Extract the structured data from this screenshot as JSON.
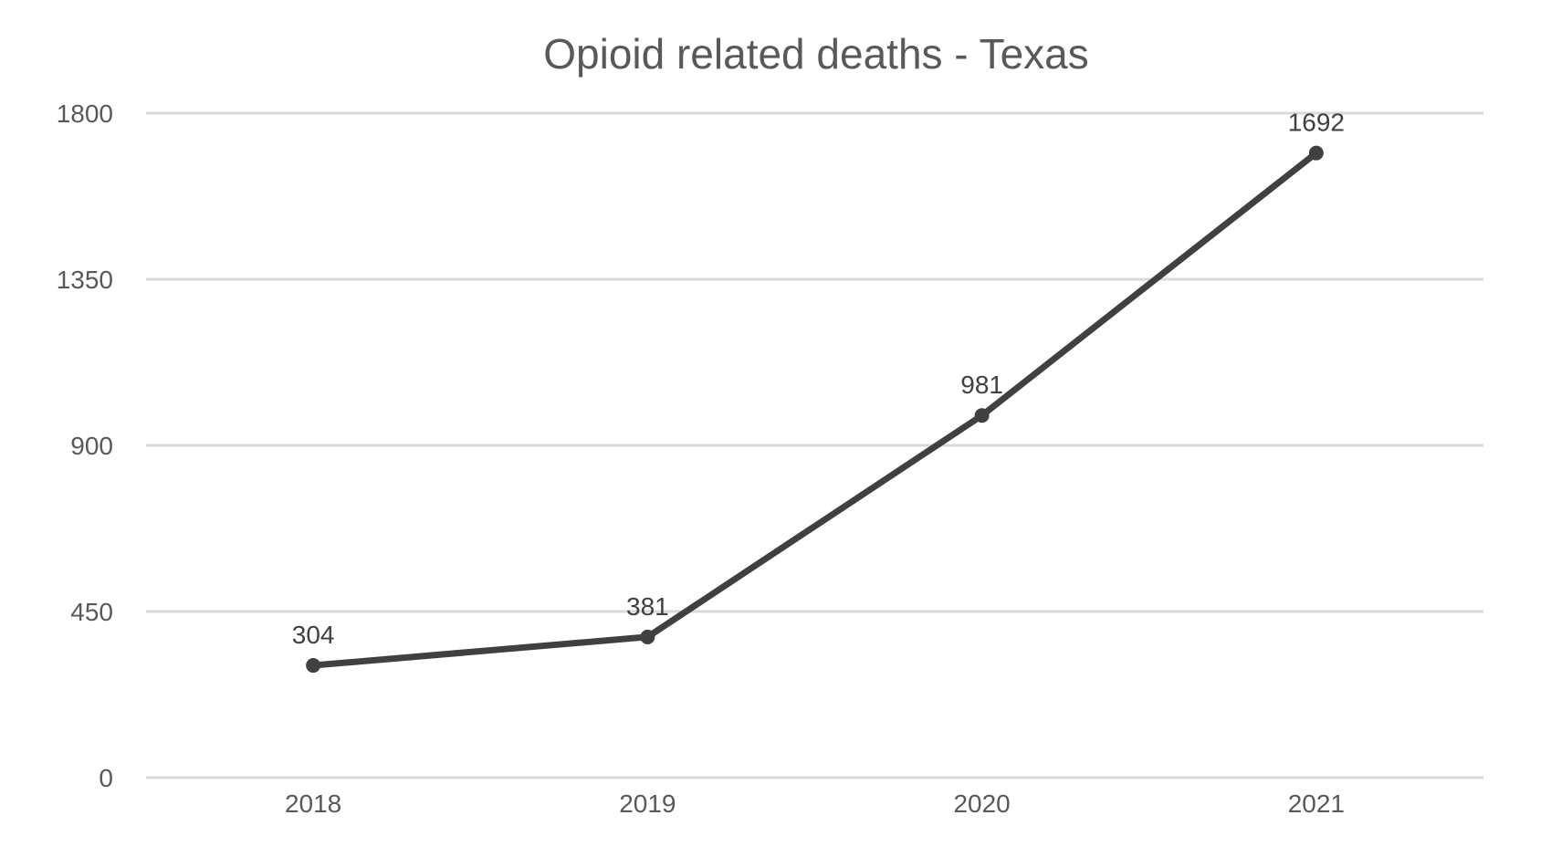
{
  "chart_data": {
    "type": "line",
    "title": "Opioid related deaths - Texas",
    "xlabel": "",
    "ylabel": "",
    "categories": [
      "2018",
      "2019",
      "2020",
      "2021"
    ],
    "series": [
      {
        "values": [
          304,
          381,
          981,
          1692
        ],
        "data_labels": [
          "304",
          "381",
          "981",
          "1692"
        ]
      }
    ],
    "y_ticks": [
      0,
      450,
      900,
      1350,
      1800
    ],
    "y_tick_labels": [
      "0",
      "450",
      "900",
      "1350",
      "1800"
    ],
    "ylim": [
      0,
      1800
    ],
    "grid": true,
    "legend": "none",
    "colors": {
      "line": "#404040",
      "grid": "#d9d9d9",
      "text": "#595959"
    }
  }
}
